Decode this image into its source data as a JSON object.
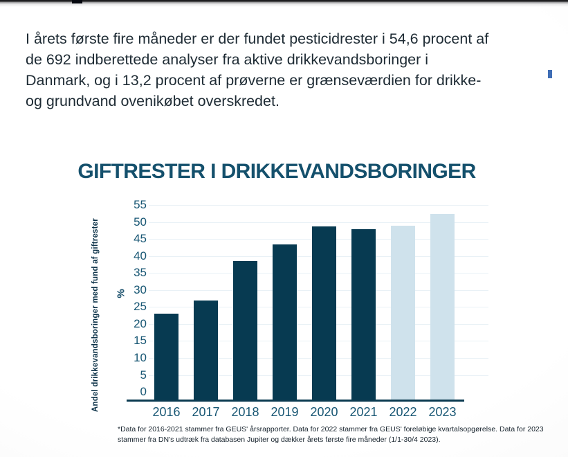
{
  "page": {
    "intro": {
      "lines": [
        "I årets første fire måneder er der fundet pesticidrester i 54,6 procent af",
        "de 692 indberettede analyser fra aktive drikkevandsboringer i",
        "Danmark, og i 13,2 procent af prøverne er grænseværdien for drikke-",
        "og grundvand ovenikøbet overskredet."
      ]
    },
    "footnote": {
      "lines": [
        "*Data for 2016-2021 stammer fra GEUS' årsrapporter. Data for 2022 stammer fra GEUS' foreløbige kvartalsopgørelse. Data for 2023",
        "stammer fra DN's udtræk fra databasen Jupiter og dækker årets første fire måneder (1/1-30/4 2023)."
      ]
    }
  },
  "chart_data": {
    "type": "bar",
    "title": "GIFTRESTER I DRIKKEVANDSBORINGER",
    "categories": [
      "2016",
      "2017",
      "2018",
      "2019",
      "2020",
      "2021",
      "2022",
      "2023"
    ],
    "values": [
      23,
      27,
      38.6,
      43.3,
      48.7,
      47.9,
      48.9,
      52.4
    ],
    "bar_styles": [
      "dark",
      "dark",
      "dark",
      "dark",
      "dark",
      "dark",
      "light",
      "light"
    ],
    "ylabel": "Andel drikkevandsboringer med fund af giftrester",
    "y_unit_label": "%",
    "xlabel": "",
    "yticks": [
      0,
      5,
      10,
      15,
      20,
      25,
      30,
      35,
      40,
      45,
      50,
      55
    ],
    "ylim": [
      0,
      55
    ],
    "grid": true,
    "legend_position": "none",
    "colors": {
      "bar_dark": "#073a51",
      "bar_light": "#cfe2ec",
      "axis_line": "#0a3a50",
      "tick_label": "#175673",
      "title": "#14506c",
      "gridline": "#e9f1f6"
    }
  }
}
